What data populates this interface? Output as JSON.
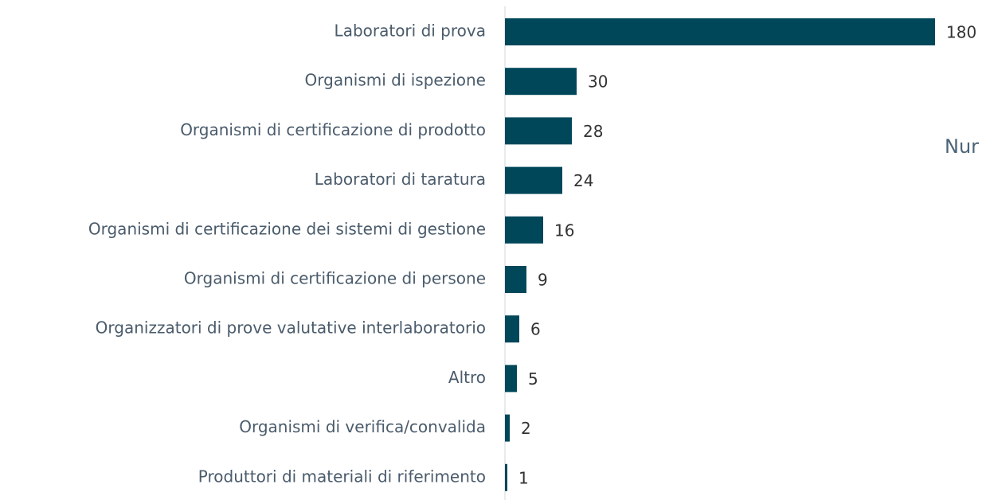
{
  "chart_data": {
    "type": "bar",
    "orientation": "horizontal",
    "categories": [
      "Laboratori di prova",
      "Organismi di ispezione",
      "Organismi di certificazione di prodotto",
      "Laboratori di taratura",
      "Organismi di certificazione dei sistemi di gestione",
      "Organismi di certificazione di persone",
      "Organizzatori di prove valutative interlaboratorio",
      "Altro",
      "Organismi di verifica/convalida",
      "Produttori di materiali di riferimento"
    ],
    "values": [
      180,
      30,
      28,
      24,
      16,
      9,
      6,
      5,
      2,
      1
    ],
    "color": "#00475a",
    "annotation": "Nur"
  }
}
